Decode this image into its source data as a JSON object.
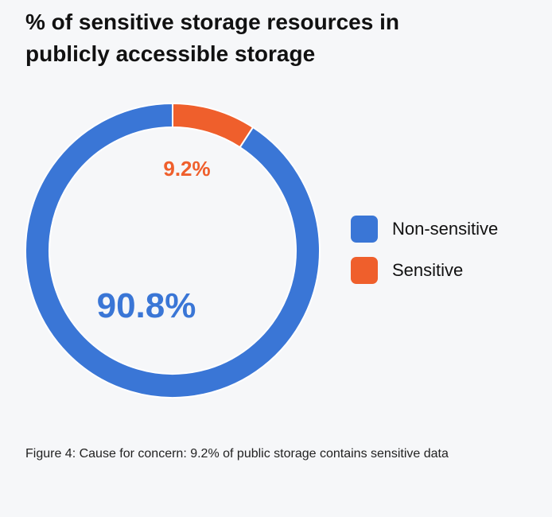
{
  "chart_data": {
    "type": "pie",
    "title": "% of sensitive storage resources in publicly accessible storage",
    "categories": [
      "Non-sensitive",
      "Sensitive"
    ],
    "values": [
      90.8,
      9.2
    ],
    "data_labels": [
      "90.8%",
      "9.2%"
    ],
    "colors": [
      "#3a76d6",
      "#ef5f2c"
    ],
    "donut": true,
    "legend_position": "right"
  },
  "caption": "Figure 4: Cause for concern: 9.2% of public storage contains sensitive data"
}
